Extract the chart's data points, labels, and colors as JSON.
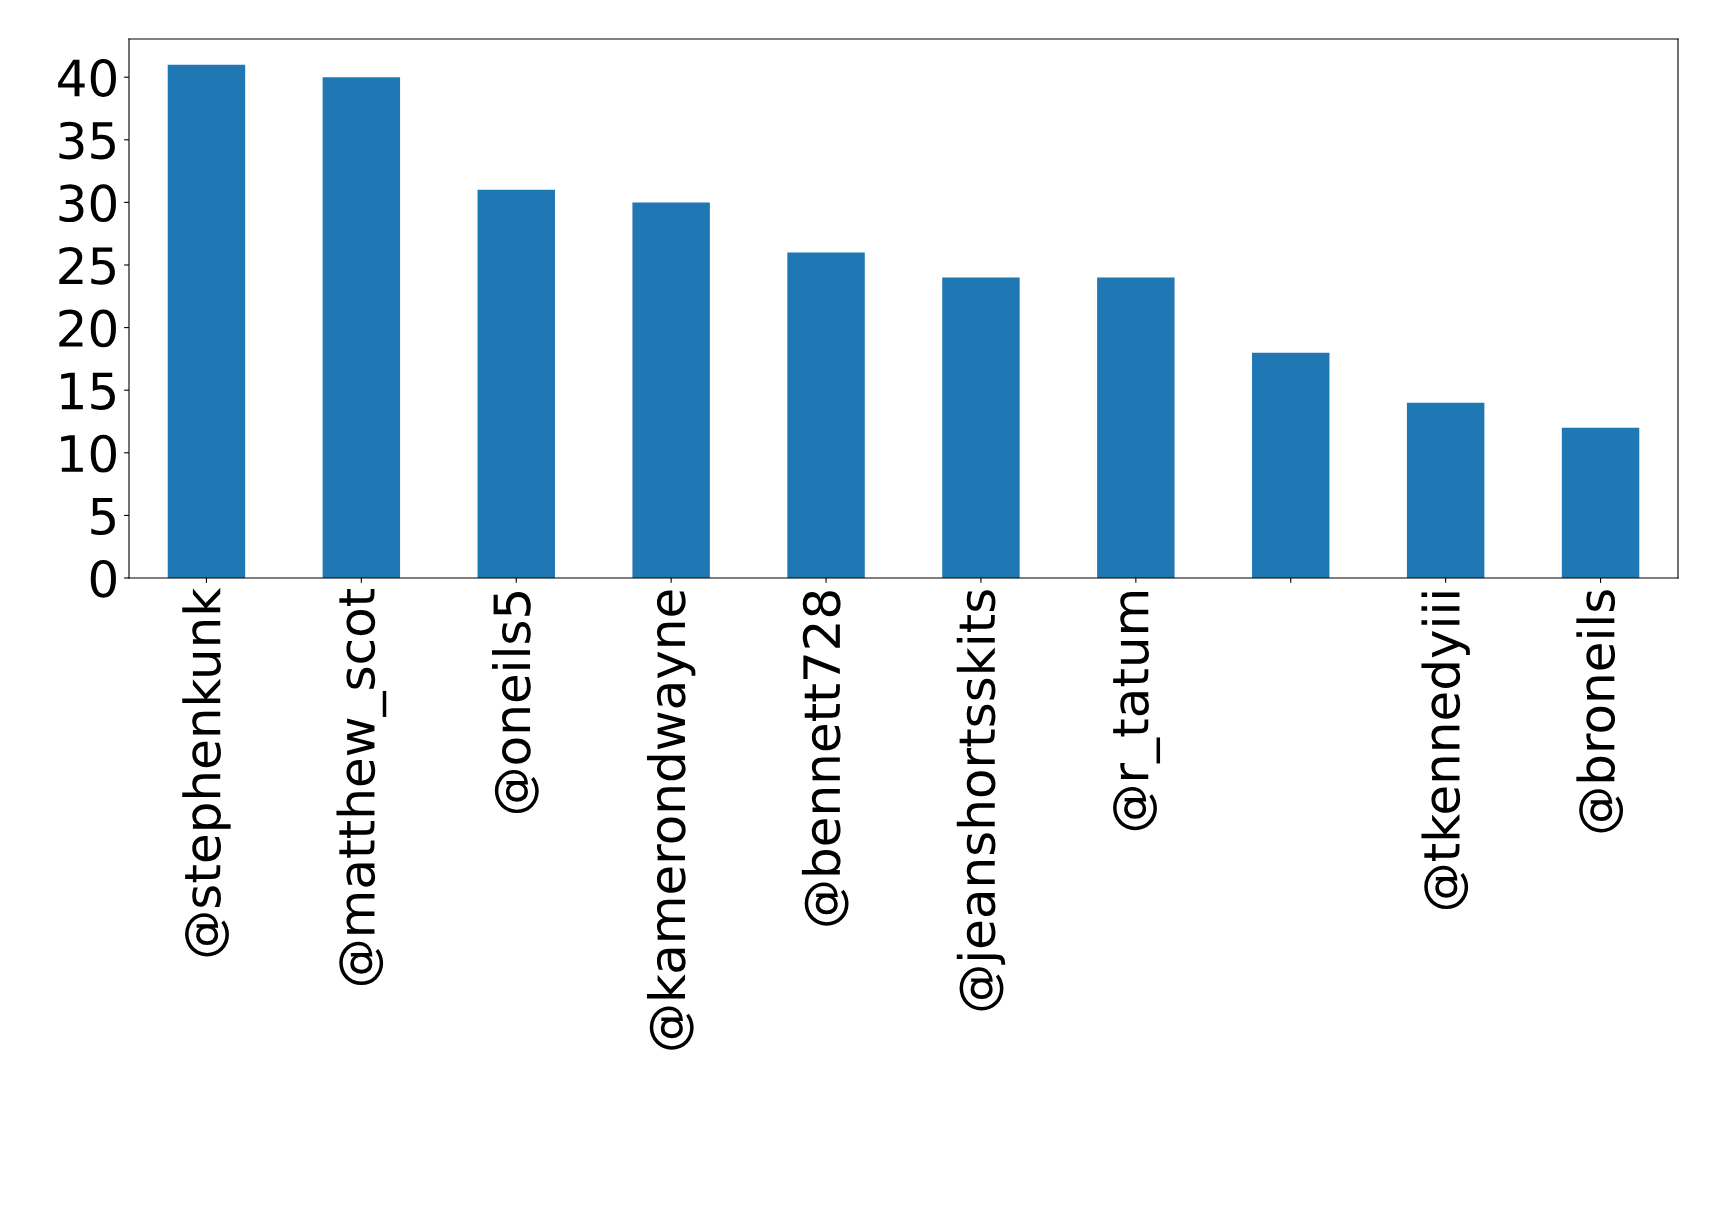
{
  "chart_data": {
    "type": "bar",
    "categories": [
      "@stephenkunk",
      "@matthew_scot",
      "@oneils5",
      "@kamerondwayne",
      "@bennett728",
      "@jeanshortsskits",
      "@r_tatum",
      null,
      "@tkennedyiii",
      "@broneils"
    ],
    "values": [
      41,
      40,
      31,
      30,
      26,
      24,
      24,
      18,
      14,
      12
    ],
    "color": "#1f77b4",
    "ylim": [
      0,
      43.05
    ],
    "yticks": [
      0,
      5,
      10,
      15,
      20,
      25,
      30,
      35,
      40
    ],
    "grid": false,
    "legend": false
  }
}
